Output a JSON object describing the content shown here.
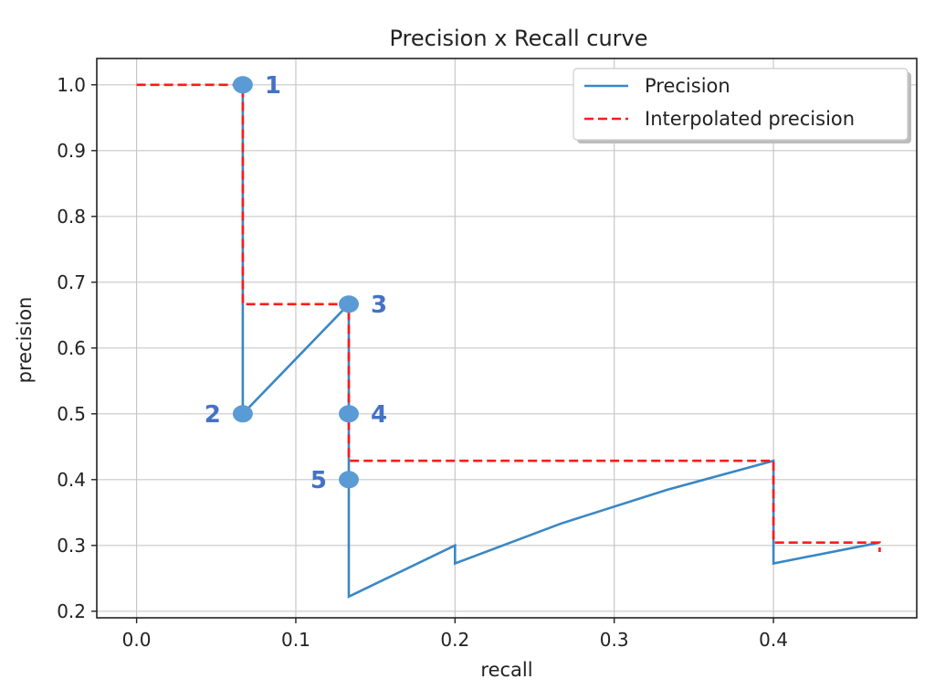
{
  "chart_data": {
    "type": "line",
    "title": "Precision x Recall curve",
    "xlabel": "recall",
    "ylabel": "precision",
    "xlim": [
      -0.025,
      0.49
    ],
    "ylim": [
      0.19,
      1.04
    ],
    "xticks": [
      0.0,
      0.1,
      0.2,
      0.3,
      0.4
    ],
    "xtick_labels": [
      "0.0",
      "0.1",
      "0.2",
      "0.3",
      "0.4"
    ],
    "yticks": [
      0.2,
      0.3,
      0.4,
      0.5,
      0.6,
      0.7,
      0.8,
      0.9,
      1.0
    ],
    "ytick_labels": [
      "0.2",
      "0.3",
      "0.4",
      "0.5",
      "0.6",
      "0.7",
      "0.8",
      "0.9",
      "1.0"
    ],
    "grid": true,
    "legend_position": "top-right",
    "series": [
      {
        "name": "Precision",
        "style": "solid",
        "color": "#3a87c4",
        "x": [
          0.0667,
          0.0667,
          0.0667,
          0.1333,
          0.1333,
          0.1333,
          0.1333,
          0.2,
          0.2,
          0.2667,
          0.3333,
          0.4,
          0.4,
          0.4667
        ],
        "y": [
          1.0,
          0.5,
          0.5,
          0.6667,
          0.5,
          0.4,
          0.2222,
          0.3,
          0.2727,
          0.3333,
          0.3846,
          0.4286,
          0.2727,
          0.3043
        ]
      },
      {
        "name": "Interpolated precision",
        "style": "dashed",
        "color": "#ff1a1a",
        "x": [
          0.0,
          0.0667,
          0.0667,
          0.1333,
          0.1333,
          0.4,
          0.4,
          0.4667,
          0.4667
        ],
        "y": [
          1.0,
          1.0,
          0.6667,
          0.6667,
          0.4286,
          0.4286,
          0.3043,
          0.3043,
          0.29
        ]
      }
    ],
    "highlighted_points": [
      {
        "label": "1",
        "x": 0.0667,
        "y": 1.0,
        "label_side": "right"
      },
      {
        "label": "2",
        "x": 0.0667,
        "y": 0.5,
        "label_side": "left"
      },
      {
        "label": "3",
        "x": 0.1333,
        "y": 0.6667,
        "label_side": "right"
      },
      {
        "label": "4",
        "x": 0.1333,
        "y": 0.5,
        "label_side": "right"
      },
      {
        "label": "5",
        "x": 0.1333,
        "y": 0.4,
        "label_side": "left"
      }
    ],
    "point_color": "#5b9bd5",
    "point_label_color": "#4472c4"
  }
}
